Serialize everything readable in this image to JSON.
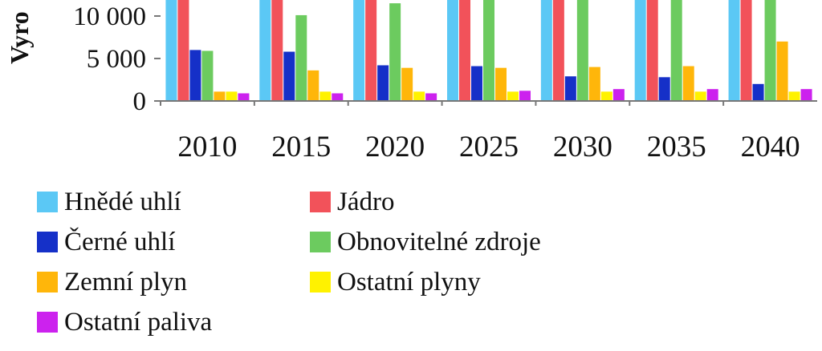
{
  "chart_data": {
    "type": "bar",
    "ylabel": "Vyro",
    "categories": [
      "2010",
      "2015",
      "2020",
      "2025",
      "2030",
      "2035",
      "2040"
    ],
    "y_ticks": [
      {
        "value": 0,
        "label": "0"
      },
      {
        "value": 5000,
        "label": "5 000"
      },
      {
        "value": 10000,
        "label": "10 000"
      }
    ],
    "ylim": [
      0,
      12000
    ],
    "series": [
      {
        "name": "Hnědé uhlí",
        "color": "#5BC8F5",
        "values": [
          12000,
          12000,
          12000,
          12000,
          12000,
          12000,
          12000
        ]
      },
      {
        "name": "Jádro",
        "color": "#F2525A",
        "values": [
          12000,
          12000,
          12000,
          12000,
          12000,
          12000,
          12000
        ]
      },
      {
        "name": "Černé uhlí",
        "color": "#1530C8",
        "values": [
          6000,
          5800,
          4200,
          4100,
          2900,
          2800,
          2000
        ]
      },
      {
        "name": "Obnovitelné zdroje",
        "color": "#6CCB5F",
        "values": [
          5900,
          10100,
          11500,
          12000,
          12000,
          12000,
          12000
        ]
      },
      {
        "name": "Zemní plyn",
        "color": "#FFB60A",
        "values": [
          1100,
          3600,
          3900,
          3900,
          4000,
          4100,
          7000
        ]
      },
      {
        "name": "Ostatní plyny",
        "color": "#FFF200",
        "values": [
          1100,
          1100,
          1100,
          1100,
          1100,
          1100,
          1100
        ]
      },
      {
        "name": "Ostatní paliva",
        "color": "#CC22EE",
        "values": [
          900,
          900,
          900,
          1200,
          1400,
          1400,
          1400
        ]
      }
    ],
    "legend_position": "bottom",
    "grid": false
  }
}
